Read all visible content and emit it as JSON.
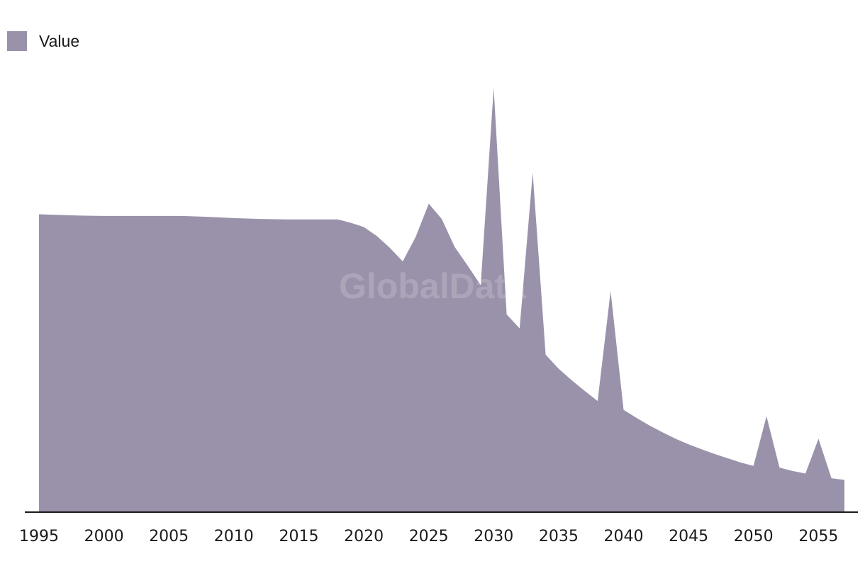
{
  "legend": {
    "label": "Value"
  },
  "watermark": "GlobalData",
  "colors": {
    "area": "#9a92aa",
    "axis": "#1a1a1a"
  },
  "chart_data": {
    "type": "area",
    "title": "",
    "xlabel": "",
    "ylabel": "",
    "xlim": [
      1995,
      2057
    ],
    "ylim": [
      0,
      100
    ],
    "grid": false,
    "legend_position": "top-left",
    "x_ticks": [
      1995,
      2000,
      2005,
      2010,
      2015,
      2020,
      2025,
      2030,
      2035,
      2040,
      2045,
      2050,
      2055
    ],
    "series": [
      {
        "name": "Value",
        "x": [
          1995,
          1998,
          2000,
          2003,
          2006,
          2008,
          2010,
          2012,
          2014,
          2016,
          2018,
          2019,
          2020,
          2021,
          2022,
          2023,
          2024,
          2025,
          2026,
          2027,
          2028,
          2029,
          2030,
          2031,
          2032,
          2033,
          2034,
          2035,
          2036,
          2037,
          2038,
          2039,
          2040,
          2041,
          2042,
          2043,
          2044,
          2045,
          2046,
          2047,
          2048,
          2049,
          2050,
          2051,
          2052,
          2053,
          2054,
          2055,
          2056,
          2057
        ],
        "values": [
          70.2,
          69.9,
          69.8,
          69.8,
          69.8,
          69.6,
          69.3,
          69.1,
          69.0,
          69.0,
          69.0,
          68.2,
          67.2,
          65.1,
          62.3,
          59.1,
          64.9,
          72.7,
          69.1,
          62.5,
          58.1,
          53.5,
          100.0,
          46.6,
          43.3,
          80.0,
          37.1,
          33.8,
          31.1,
          28.6,
          26.2,
          52.1,
          24.1,
          22.2,
          20.4,
          18.8,
          17.3,
          16.0,
          14.8,
          13.7,
          12.7,
          11.7,
          10.9,
          22.6,
          10.5,
          9.7,
          9.1,
          17.3,
          8.0,
          7.6
        ]
      }
    ]
  }
}
